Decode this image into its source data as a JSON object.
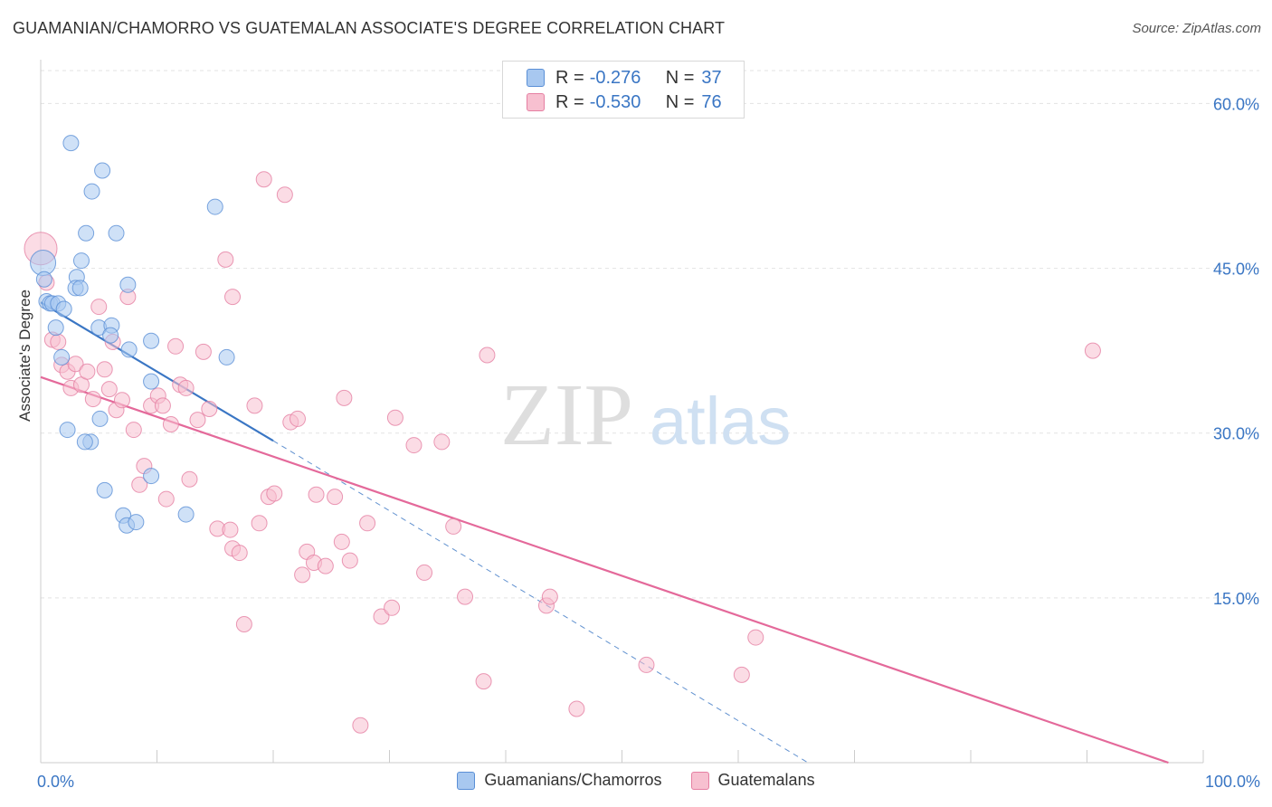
{
  "title": "GUAMANIAN/CHAMORRO VS GUATEMALAN ASSOCIATE'S DEGREE CORRELATION CHART",
  "source": "Source: ZipAtlas.com",
  "watermark": {
    "zip": "ZIP",
    "atlas": "atlas"
  },
  "legend_top": [
    {
      "r_label": "R =",
      "r_value": "-0.276",
      "n_label": "N =",
      "n_value": "37",
      "color": "#a8c8f0",
      "border": "#5a8fd6"
    },
    {
      "r_label": "R =",
      "r_value": "-0.530",
      "n_label": "N =",
      "n_value": "76",
      "color": "#f7c0d0",
      "border": "#e57fa2"
    }
  ],
  "legend_bottom": [
    {
      "label": "Guamanians/Chamorros",
      "color": "#a8c8f0",
      "border": "#5a8fd6"
    },
    {
      "label": "Guatemalans",
      "color": "#f7c0d0",
      "border": "#e57fa2"
    }
  ],
  "chart_data": {
    "type": "scatter",
    "title": "GUAMANIAN/CHAMORRO VS GUATEMALAN ASSOCIATE'S DEGREE CORRELATION CHART",
    "ylabel": "Associate's Degree",
    "xlabel": "",
    "xlim": [
      0,
      100
    ],
    "ylim": [
      0,
      63
    ],
    "x_tick_labels": [
      "0.0%",
      "100.0%"
    ],
    "y_ticks": [
      15,
      30,
      45,
      60
    ],
    "y_tick_labels": [
      "15.0%",
      "30.0%",
      "45.0%",
      "60.0%"
    ],
    "grid": true,
    "series": [
      {
        "name": "Guamanians/Chamorros",
        "color": "#a8c8f0",
        "stroke": "#5a8fd6",
        "points": [
          [
            0.2,
            45.5
          ],
          [
            0.3,
            44.0
          ],
          [
            0.5,
            42.0
          ],
          [
            0.8,
            41.8
          ],
          [
            1.0,
            41.8
          ],
          [
            1.5,
            41.8
          ],
          [
            2.0,
            41.3
          ],
          [
            1.3,
            39.6
          ],
          [
            1.8,
            36.9
          ],
          [
            2.3,
            30.3
          ],
          [
            2.6,
            56.4
          ],
          [
            3.1,
            44.2
          ],
          [
            3.0,
            43.2
          ],
          [
            3.4,
            43.2
          ],
          [
            3.5,
            45.7
          ],
          [
            3.9,
            48.2
          ],
          [
            4.4,
            52.0
          ],
          [
            5.0,
            39.6
          ],
          [
            5.1,
            31.3
          ],
          [
            4.3,
            29.2
          ],
          [
            3.8,
            29.2
          ],
          [
            5.5,
            24.8
          ],
          [
            5.3,
            53.9
          ],
          [
            6.5,
            48.2
          ],
          [
            6.1,
            39.8
          ],
          [
            6.0,
            38.9
          ],
          [
            7.5,
            43.5
          ],
          [
            7.6,
            37.6
          ],
          [
            7.1,
            22.5
          ],
          [
            7.4,
            21.6
          ],
          [
            8.2,
            21.9
          ],
          [
            9.5,
            38.4
          ],
          [
            9.5,
            34.7
          ],
          [
            9.5,
            26.1
          ],
          [
            12.5,
            22.6
          ],
          [
            15.0,
            50.6
          ],
          [
            16.0,
            36.9
          ]
        ]
      },
      {
        "name": "Guatemalans",
        "color": "#f7c0d0",
        "stroke": "#e57fa2",
        "points": [
          [
            0.0,
            46.8
          ],
          [
            0.5,
            43.7
          ],
          [
            1.0,
            38.5
          ],
          [
            1.5,
            38.3
          ],
          [
            1.8,
            36.2
          ],
          [
            2.3,
            35.6
          ],
          [
            2.6,
            34.1
          ],
          [
            3.0,
            36.3
          ],
          [
            3.5,
            34.4
          ],
          [
            4.0,
            35.6
          ],
          [
            4.5,
            33.1
          ],
          [
            5.0,
            41.5
          ],
          [
            5.5,
            35.8
          ],
          [
            5.9,
            34.0
          ],
          [
            6.2,
            38.3
          ],
          [
            6.5,
            32.1
          ],
          [
            7.0,
            33.0
          ],
          [
            7.5,
            42.4
          ],
          [
            8.0,
            30.3
          ],
          [
            8.5,
            25.3
          ],
          [
            8.9,
            27.0
          ],
          [
            9.5,
            32.5
          ],
          [
            10.1,
            33.4
          ],
          [
            10.5,
            32.5
          ],
          [
            10.8,
            24.0
          ],
          [
            11.2,
            30.8
          ],
          [
            11.6,
            37.9
          ],
          [
            12.0,
            34.4
          ],
          [
            12.5,
            34.1
          ],
          [
            12.8,
            25.8
          ],
          [
            13.5,
            31.2
          ],
          [
            14.0,
            37.4
          ],
          [
            14.5,
            32.2
          ],
          [
            15.2,
            21.3
          ],
          [
            15.9,
            45.8
          ],
          [
            16.3,
            21.2
          ],
          [
            16.5,
            19.5
          ],
          [
            17.1,
            19.1
          ],
          [
            17.5,
            12.6
          ],
          [
            18.4,
            32.5
          ],
          [
            18.8,
            21.8
          ],
          [
            19.2,
            53.1
          ],
          [
            19.6,
            24.2
          ],
          [
            20.1,
            24.5
          ],
          [
            21.0,
            51.7
          ],
          [
            21.5,
            31.0
          ],
          [
            22.1,
            31.3
          ],
          [
            22.5,
            17.1
          ],
          [
            22.9,
            19.2
          ],
          [
            23.5,
            18.2
          ],
          [
            23.7,
            24.4
          ],
          [
            24.5,
            17.9
          ],
          [
            25.3,
            24.2
          ],
          [
            25.9,
            20.1
          ],
          [
            26.1,
            33.2
          ],
          [
            26.6,
            18.4
          ],
          [
            27.5,
            3.4
          ],
          [
            28.1,
            21.8
          ],
          [
            29.3,
            13.3
          ],
          [
            30.2,
            14.1
          ],
          [
            30.5,
            31.4
          ],
          [
            32.1,
            28.9
          ],
          [
            33.0,
            17.3
          ],
          [
            34.5,
            29.2
          ],
          [
            35.5,
            21.5
          ],
          [
            36.5,
            15.1
          ],
          [
            38.1,
            7.4
          ],
          [
            38.4,
            37.1
          ],
          [
            43.5,
            14.3
          ],
          [
            43.8,
            15.1
          ],
          [
            46.1,
            4.9
          ],
          [
            52.1,
            8.9
          ],
          [
            60.3,
            8.0
          ],
          [
            61.5,
            11.4
          ],
          [
            90.5,
            37.5
          ],
          [
            16.5,
            42.4
          ]
        ]
      }
    ],
    "trend_lines": [
      {
        "series": "Guamanians/Chamorros",
        "from": [
          0,
          41.9
        ],
        "to": [
          20,
          29.3
        ],
        "extended_to": [
          66,
          0
        ],
        "color": "#3a76c4"
      },
      {
        "series": "Guatemalans",
        "from": [
          0,
          35.1
        ],
        "to": [
          97,
          0
        ],
        "color": "#e4699a"
      }
    ]
  }
}
